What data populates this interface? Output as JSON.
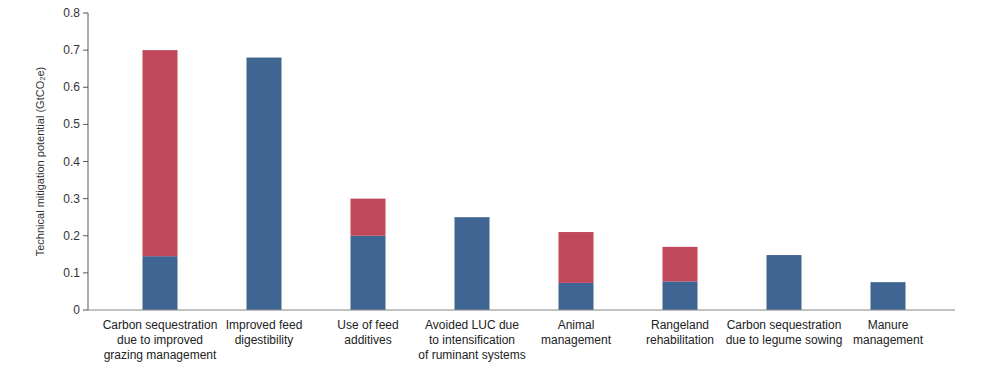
{
  "chart_data": {
    "type": "bar",
    "stacked": true,
    "y_label": "Technical mitigation potential (GtCO₂e)",
    "categories": [
      "Carbon sequestration\ndue to improved\ngrazing management",
      "Improved feed\ndigestibility",
      "Use of feed\nadditives",
      "Avoided LUC due\nto intensification\nof ruminant systems",
      "Animal\nmanagement",
      "Rangeland\nrehabilitation",
      "Carbon sequestration\ndue to legume sowing",
      "Manure\nmanagement"
    ],
    "series": [
      {
        "color": "#3f6592",
        "values": [
          0.145,
          0.68,
          0.2,
          0.25,
          0.073,
          0.077,
          0.148,
          0.075
        ]
      },
      {
        "color": "#c0485a",
        "values": [
          0.555,
          0,
          0.1,
          0,
          0.137,
          0.093,
          0,
          0
        ]
      }
    ],
    "ylim": [
      0,
      0.8
    ],
    "yticks": [
      0,
      0.1,
      0.2,
      0.3,
      0.4,
      0.5,
      0.6,
      0.7,
      0.8
    ],
    "grid": false
  }
}
